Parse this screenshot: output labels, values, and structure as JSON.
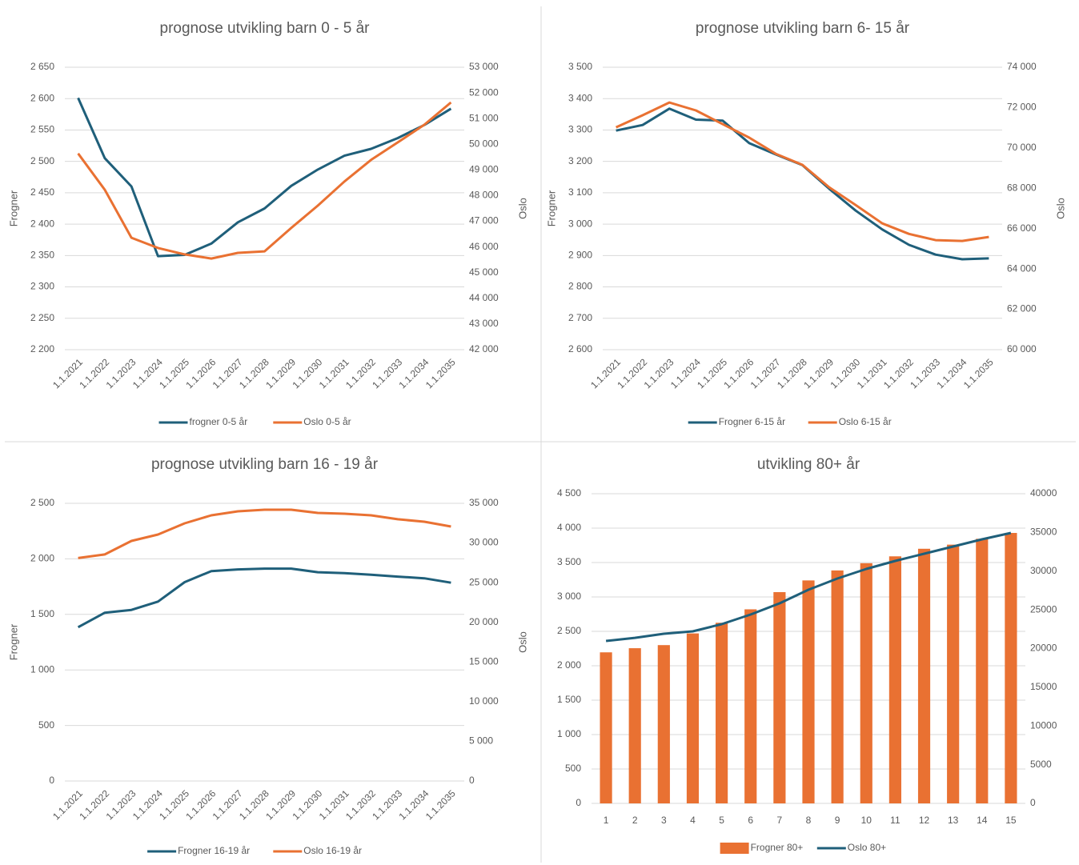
{
  "chart_data": [
    {
      "type": "line",
      "title": "prognose utvikling barn 0 - 5 år",
      "ylabel": "Frogner",
      "y2label": "Oslo",
      "categories": [
        "1.1.2021",
        "1.1.2022",
        "1.1.2023",
        "1.1.2024",
        "1.1.2025",
        "1.1.2026",
        "1.1.2027",
        "1.1.2028",
        "1.1.2029",
        "1.1.2030",
        "1.1.2031",
        "1.1.2032",
        "1.1.2033",
        "1.1.2034",
        "1.1.2035"
      ],
      "series": [
        {
          "name": "frogner 0-5 år",
          "color": "#1f5f7a",
          "values": [
            2601,
            2505,
            2460,
            2349,
            2351,
            2369,
            2403,
            2425,
            2461,
            2487,
            2509,
            2520,
            2537,
            2558,
            2584
          ]
        },
        {
          "name": "Oslo 0-5 år",
          "color": "#e97132",
          "axis": "y2",
          "values": [
            49640,
            48230,
            46360,
            45960,
            45710,
            45550,
            45770,
            45830,
            46740,
            47610,
            48550,
            49390,
            50070,
            50760,
            51630
          ]
        }
      ],
      "ylim": [
        2200,
        2650
      ],
      "yticks": [
        {
          "value": 2200,
          "label": "2 200"
        },
        {
          "value": 2250,
          "label": "2 250"
        },
        {
          "value": 2300,
          "label": "2 300"
        },
        {
          "value": 2350,
          "label": "2 350"
        },
        {
          "value": 2400,
          "label": "2 400"
        },
        {
          "value": 2450,
          "label": "2 450"
        },
        {
          "value": 2500,
          "label": "2 500"
        },
        {
          "value": 2550,
          "label": "2 550"
        },
        {
          "value": 2600,
          "label": "2 600"
        },
        {
          "value": 2650,
          "label": "2 650"
        }
      ],
      "y2lim": [
        42000,
        53000
      ],
      "y2ticks": [
        {
          "value": 42000,
          "label": "42 000"
        },
        {
          "value": 43000,
          "label": "43 000"
        },
        {
          "value": 44000,
          "label": "44 000"
        },
        {
          "value": 45000,
          "label": "45 000"
        },
        {
          "value": 46000,
          "label": "46 000"
        },
        {
          "value": 47000,
          "label": "47 000"
        },
        {
          "value": 48000,
          "label": "48 000"
        },
        {
          "value": 49000,
          "label": "49 000"
        },
        {
          "value": 50000,
          "label": "50 000"
        },
        {
          "value": 51000,
          "label": "51 000"
        },
        {
          "value": 52000,
          "label": "52 000"
        },
        {
          "value": 53000,
          "label": "53 000"
        }
      ],
      "grid": true,
      "legend": "bottom"
    },
    {
      "type": "line",
      "title": "prognose utvikling barn 6- 15 år",
      "ylabel": "Frogner",
      "y2label": "Oslo",
      "categories": [
        "1.1.2021",
        "1.1.2022",
        "1.1.2023",
        "1.1.2024",
        "1.1.2025",
        "1.1.2026",
        "1.1.2027",
        "1.1.2028",
        "1.1.2029",
        "1.1.2030",
        "1.1.2031",
        "1.1.2032",
        "1.1.2033",
        "1.1.2034",
        "1.1.2035"
      ],
      "series": [
        {
          "name": "Frogner 6-15 år",
          "color": "#1f5f7a",
          "values": [
            3298,
            3316,
            3368,
            3333,
            3330,
            3258,
            3222,
            3188,
            3113,
            3043,
            2983,
            2934,
            2903,
            2888,
            2891
          ]
        },
        {
          "name": "Oslo  6-15 år",
          "color": "#e97132",
          "axis": "y2",
          "values": [
            71020,
            71620,
            72250,
            71860,
            71180,
            70510,
            69710,
            69160,
            68050,
            67170,
            66260,
            65740,
            65430,
            65390,
            65590
          ]
        }
      ],
      "ylim": [
        2600,
        3500
      ],
      "yticks": [
        {
          "value": 2600,
          "label": "2 600"
        },
        {
          "value": 2700,
          "label": "2 700"
        },
        {
          "value": 2800,
          "label": "2 800"
        },
        {
          "value": 2900,
          "label": "2 900"
        },
        {
          "value": 3000,
          "label": "3 000"
        },
        {
          "value": 3100,
          "label": "3 100"
        },
        {
          "value": 3200,
          "label": "3 200"
        },
        {
          "value": 3300,
          "label": "3 300"
        },
        {
          "value": 3400,
          "label": "3 400"
        },
        {
          "value": 3500,
          "label": "3 500"
        }
      ],
      "y2lim": [
        60000,
        74000
      ],
      "y2ticks": [
        {
          "value": 60000,
          "label": "60 000"
        },
        {
          "value": 62000,
          "label": "62 000"
        },
        {
          "value": 64000,
          "label": "64 000"
        },
        {
          "value": 66000,
          "label": "66 000"
        },
        {
          "value": 68000,
          "label": "68 000"
        },
        {
          "value": 70000,
          "label": "70 000"
        },
        {
          "value": 72000,
          "label": "72 000"
        },
        {
          "value": 74000,
          "label": "74 000"
        }
      ],
      "grid": true,
      "legend": "bottom"
    },
    {
      "type": "line",
      "title": "prognose utvikling barn 16 - 19 år",
      "ylabel": "Frogner",
      "y2label": "Oslo",
      "categories": [
        "1.1.2021",
        "1.1.2022",
        "1.1.2023",
        "1.1.2024",
        "1.1.2025",
        "1.1.2026",
        "1.1.2027",
        "1.1.2028",
        "1.1.2029",
        "1.1.2030",
        "1.1.2031",
        "1.1.2032",
        "1.1.2033",
        "1.1.2034",
        "1.1.2035"
      ],
      "series": [
        {
          "name": "Frogner 16-19 år",
          "color": "#1f5f7a",
          "values": [
            1385,
            1515,
            1540,
            1615,
            1790,
            1890,
            1905,
            1912,
            1912,
            1880,
            1872,
            1857,
            1840,
            1825,
            1785
          ]
        },
        {
          "name": "Oslo 16-19 år",
          "color": "#e97132",
          "axis": "y2",
          "values": [
            28100,
            28550,
            30260,
            31070,
            32480,
            33490,
            33990,
            34190,
            34190,
            33790,
            33690,
            33490,
            32990,
            32680,
            32070
          ]
        }
      ],
      "ylim": [
        0,
        2500
      ],
      "yticks": [
        0,
        500,
        {
          "value": 1000,
          "label": "1 000"
        },
        {
          "value": 1500,
          "label": "1 500"
        },
        {
          "value": 2000,
          "label": "2 000"
        },
        {
          "value": 2500,
          "label": "2 500"
        }
      ],
      "y2lim": [
        0,
        35000
      ],
      "y2ticks": [
        0,
        {
          "value": 5000,
          "label": "5 000"
        },
        {
          "value": 10000,
          "label": "10 000"
        },
        {
          "value": 15000,
          "label": "15 000"
        },
        {
          "value": 20000,
          "label": "20 000"
        },
        {
          "value": 25000,
          "label": "25 000"
        },
        {
          "value": 30000,
          "label": "30 000"
        },
        {
          "value": 35000,
          "label": "35 000"
        }
      ],
      "grid": true,
      "legend": "bottom"
    },
    {
      "type": "bar",
      "title": "utvikling 80+ år",
      "categories": [
        "1",
        "2",
        "3",
        "4",
        "5",
        "6",
        "7",
        "8",
        "9",
        "10",
        "11",
        "12",
        "13",
        "14",
        "15"
      ],
      "series": [
        {
          "name": "Frogner 80+",
          "color": "#e97132",
          "type": "bar",
          "values": [
            2195,
            2255,
            2300,
            2470,
            2625,
            2820,
            3070,
            3240,
            3385,
            3490,
            3590,
            3700,
            3760,
            3845,
            3930
          ]
        },
        {
          "name": "Oslo 80+",
          "color": "#1f5f7a",
          "type": "line",
          "axis": "y2",
          "values": [
            20980,
            21390,
            21910,
            22220,
            23150,
            24390,
            25840,
            27600,
            29040,
            30280,
            31320,
            32250,
            33180,
            34110,
            34940
          ]
        }
      ],
      "ylim": [
        0,
        4500
      ],
      "yticks": [
        0,
        500,
        {
          "value": 1000,
          "label": "1 000"
        },
        {
          "value": 1500,
          "label": "1 500"
        },
        {
          "value": 2000,
          "label": "2 000"
        },
        {
          "value": 2500,
          "label": "2 500"
        },
        {
          "value": 3000,
          "label": "3 000"
        },
        {
          "value": 3500,
          "label": "3 500"
        },
        {
          "value": 4000,
          "label": "4 000"
        },
        {
          "value": 4500,
          "label": "4 500"
        }
      ],
      "y2lim": [
        0,
        40000
      ],
      "y2ticks": [
        0,
        5000,
        10000,
        15000,
        20000,
        25000,
        30000,
        35000,
        40000
      ],
      "grid": true,
      "legend": "bottom"
    }
  ]
}
